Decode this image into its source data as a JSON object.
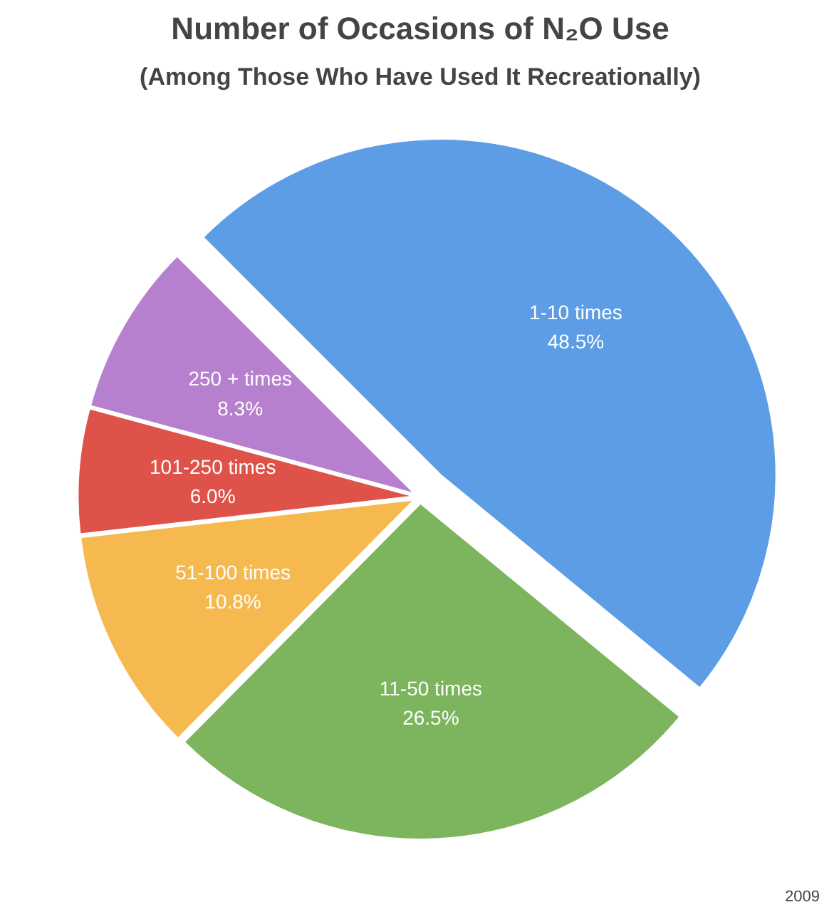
{
  "chart_data": {
    "type": "pie",
    "title": "Number of Occasions of N₂O Use",
    "subtitle": "(Among Those Who Have Used It Recreationally)",
    "categories": [
      "1-10 times",
      "11-50 times",
      "51-100 times",
      "101-250 times",
      "250 + times"
    ],
    "values": [
      48.5,
      26.5,
      10.8,
      6.0,
      8.3
    ],
    "value_labels": [
      "48.5%",
      "26.5%",
      "10.8%",
      "6.0%",
      "8.3%"
    ],
    "colors": [
      "#5c9de6",
      "#7cb55e",
      "#f6b94f",
      "#df5249",
      "#b680cf"
    ],
    "annotations": [
      "2009"
    ]
  }
}
